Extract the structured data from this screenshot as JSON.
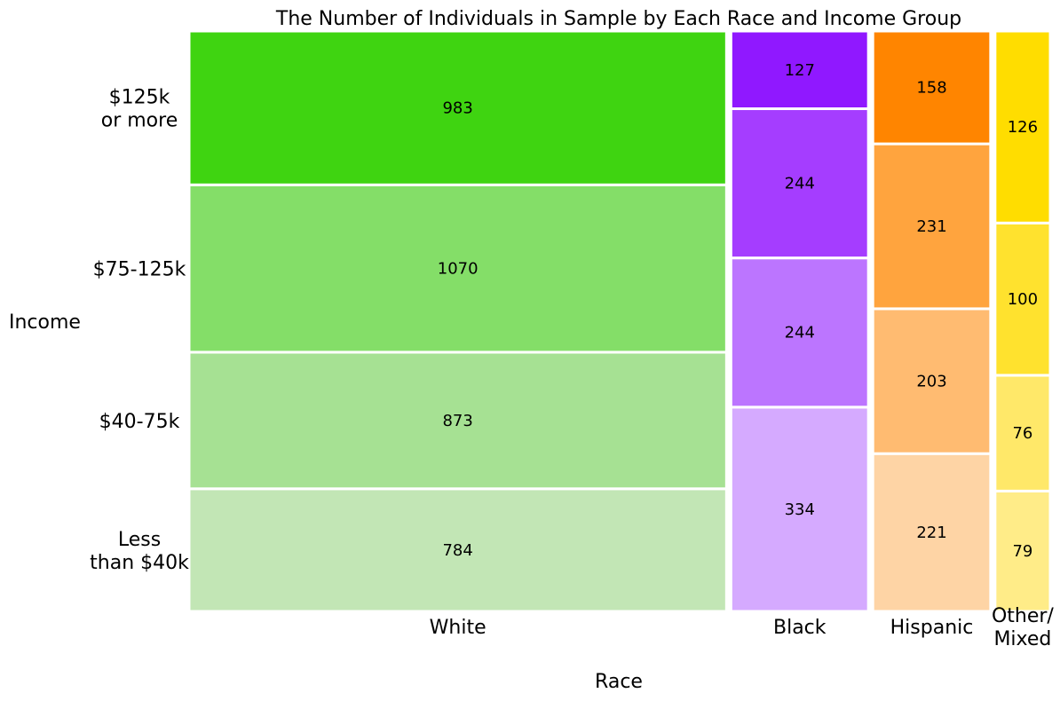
{
  "chart_data": {
    "type": "mosaic",
    "title": "The Number of Individuals in Sample by Each Race and Income Group",
    "xlabel": "Race",
    "ylabel": "Income",
    "categories": [
      "White",
      "Black",
      "Hispanic",
      "Other/\nMixed"
    ],
    "income_groups": [
      "Less\nthan $40k",
      "$40-75k",
      "$75-125k",
      "$125k\nor more"
    ],
    "series": [
      {
        "name": "Less\nthan $40k",
        "values": [
          784,
          334,
          221,
          79
        ]
      },
      {
        "name": "$40-75k",
        "values": [
          873,
          244,
          203,
          76
        ]
      },
      {
        "name": "$75-125k",
        "values": [
          1070,
          244,
          231,
          100
        ]
      },
      {
        "name": "$125k\nor more",
        "values": [
          983,
          127,
          158,
          126
        ]
      }
    ],
    "colors": {
      "White": [
        "#c2e6b5",
        "#a6e193",
        "#84de68",
        "#3fd411"
      ],
      "Black": [
        "#d5aaff",
        "#bc75ff",
        "#a53dff",
        "#9018ff"
      ],
      "Hispanic": [
        "#fed4a5",
        "#ffbb71",
        "#ffa43e",
        "#ff8500"
      ],
      "Other/\nMixed": [
        "#ffec88",
        "#ffe869",
        "#ffe22e",
        "#ffdd00"
      ]
    }
  }
}
